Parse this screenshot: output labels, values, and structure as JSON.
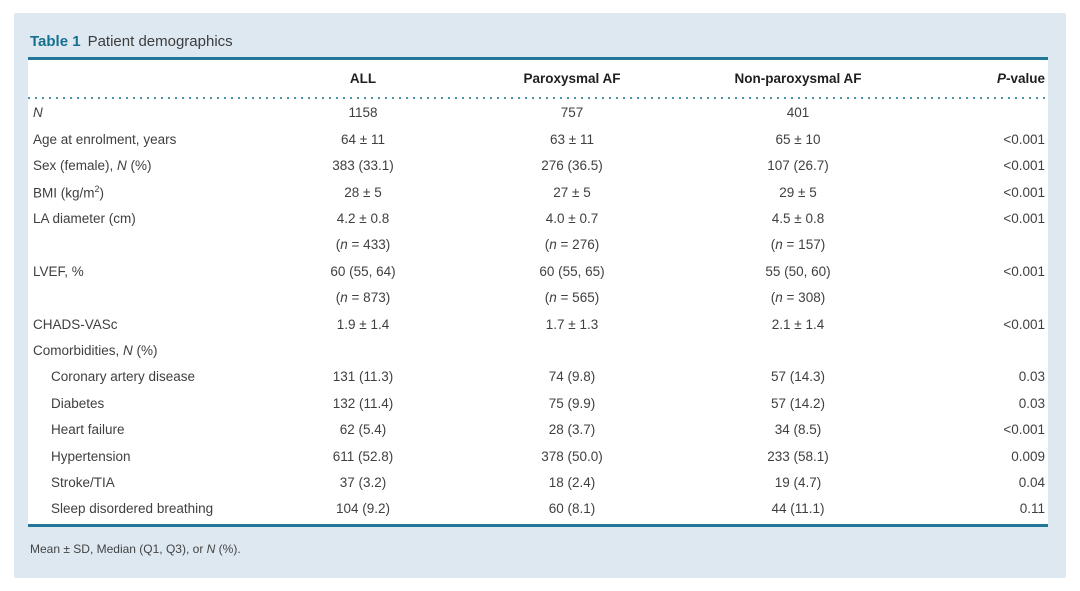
{
  "colors": {
    "accent_teal": "#16708f",
    "rule_teal": "#20779a",
    "dot_teal": "#4a92ac",
    "card_background": "#dde8f1",
    "body_text": "#3f3f3f"
  },
  "table": {
    "label": "Table 1",
    "title": "Patient demographics",
    "headers": [
      {
        "align": "left",
        "segments": []
      },
      {
        "align": "center",
        "segments": [
          [
            "ALL",
            "b"
          ]
        ]
      },
      {
        "align": "center",
        "segments": [
          [
            "Paroxysmal AF",
            "b"
          ]
        ]
      },
      {
        "align": "center",
        "segments": [
          [
            "Non-paroxysmal AF",
            "b"
          ]
        ]
      },
      {
        "align": "right",
        "segments": [
          [
            "P",
            "bi"
          ],
          [
            "-value",
            "b"
          ]
        ]
      }
    ],
    "rows": [
      {
        "indent": false,
        "label": [
          [
            "N",
            "i"
          ]
        ],
        "cells": [
          [
            [
              "1158",
              ""
            ]
          ],
          [
            [
              "757",
              ""
            ]
          ],
          [
            [
              "401",
              ""
            ]
          ],
          []
        ]
      },
      {
        "indent": false,
        "label": [
          [
            "Age at enrolment, years",
            ""
          ]
        ],
        "cells": [
          [
            [
              "64 ± 11",
              ""
            ]
          ],
          [
            [
              "63 ± 11",
              ""
            ]
          ],
          [
            [
              "65 ± 10",
              ""
            ]
          ],
          [
            [
              "<0.001",
              ""
            ]
          ]
        ]
      },
      {
        "indent": false,
        "label": [
          [
            "Sex (female), ",
            ""
          ],
          [
            "N",
            "i"
          ],
          [
            " (%)",
            ""
          ]
        ],
        "cells": [
          [
            [
              "383 (33.1)",
              ""
            ]
          ],
          [
            [
              "276 (36.5)",
              ""
            ]
          ],
          [
            [
              "107 (26.7)",
              ""
            ]
          ],
          [
            [
              "<0.001",
              ""
            ]
          ]
        ]
      },
      {
        "indent": false,
        "label": [
          [
            "BMI (kg/m",
            ""
          ],
          [
            "2",
            "sup"
          ],
          [
            ")",
            ""
          ]
        ],
        "cells": [
          [
            [
              "28 ± 5",
              ""
            ]
          ],
          [
            [
              "27 ± 5",
              ""
            ]
          ],
          [
            [
              "29 ± 5",
              ""
            ]
          ],
          [
            [
              "<0.001",
              ""
            ]
          ]
        ]
      },
      {
        "indent": false,
        "label": [
          [
            "LA diameter (cm)",
            ""
          ]
        ],
        "cells": [
          [
            [
              "4.2 ± 0.8",
              ""
            ]
          ],
          [
            [
              "4.0 ± 0.7",
              ""
            ]
          ],
          [
            [
              "4.5 ± 0.8",
              ""
            ]
          ],
          [
            [
              "<0.001",
              ""
            ]
          ]
        ]
      },
      {
        "indent": false,
        "label": [],
        "cells": [
          [
            [
              "(",
              ""
            ],
            [
              "n",
              "i"
            ],
            [
              " = 433)",
              ""
            ]
          ],
          [
            [
              "(",
              ""
            ],
            [
              "n",
              "i"
            ],
            [
              " = 276)",
              ""
            ]
          ],
          [
            [
              "(",
              ""
            ],
            [
              "n",
              "i"
            ],
            [
              " = 157)",
              ""
            ]
          ],
          []
        ]
      },
      {
        "indent": false,
        "label": [
          [
            "LVEF, %",
            ""
          ]
        ],
        "cells": [
          [
            [
              "60 (55, 64)",
              ""
            ]
          ],
          [
            [
              "60 (55, 65)",
              ""
            ]
          ],
          [
            [
              "55 (50, 60)",
              ""
            ]
          ],
          [
            [
              "<0.001",
              ""
            ]
          ]
        ]
      },
      {
        "indent": false,
        "label": [],
        "cells": [
          [
            [
              "(",
              ""
            ],
            [
              "n",
              "i"
            ],
            [
              " = 873)",
              ""
            ]
          ],
          [
            [
              "(",
              ""
            ],
            [
              "n",
              "i"
            ],
            [
              " = 565)",
              ""
            ]
          ],
          [
            [
              "(",
              ""
            ],
            [
              "n",
              "i"
            ],
            [
              " = 308)",
              ""
            ]
          ],
          []
        ]
      },
      {
        "indent": false,
        "label": [
          [
            "CHADS-VASc",
            ""
          ]
        ],
        "cells": [
          [
            [
              "1.9 ± 1.4",
              ""
            ]
          ],
          [
            [
              "1.7 ± 1.3",
              ""
            ]
          ],
          [
            [
              "2.1 ± 1.4",
              ""
            ]
          ],
          [
            [
              "<0.001",
              ""
            ]
          ]
        ]
      },
      {
        "indent": false,
        "label": [
          [
            "Comorbidities, ",
            ""
          ],
          [
            "N",
            "i"
          ],
          [
            " (%)",
            ""
          ]
        ],
        "cells": [
          [],
          [],
          [],
          []
        ]
      },
      {
        "indent": true,
        "label": [
          [
            "Coronary artery disease",
            ""
          ]
        ],
        "cells": [
          [
            [
              "131 (11.3)",
              ""
            ]
          ],
          [
            [
              "74 (9.8)",
              ""
            ]
          ],
          [
            [
              "57 (14.3)",
              ""
            ]
          ],
          [
            [
              "0.03",
              ""
            ]
          ]
        ]
      },
      {
        "indent": true,
        "label": [
          [
            "Diabetes",
            ""
          ]
        ],
        "cells": [
          [
            [
              "132 (11.4)",
              ""
            ]
          ],
          [
            [
              "75 (9.9)",
              ""
            ]
          ],
          [
            [
              "57 (14.2)",
              ""
            ]
          ],
          [
            [
              "0.03",
              ""
            ]
          ]
        ]
      },
      {
        "indent": true,
        "label": [
          [
            "Heart failure",
            ""
          ]
        ],
        "cells": [
          [
            [
              "62 (5.4)",
              ""
            ]
          ],
          [
            [
              "28 (3.7)",
              ""
            ]
          ],
          [
            [
              "34 (8.5)",
              ""
            ]
          ],
          [
            [
              "<0.001",
              ""
            ]
          ]
        ]
      },
      {
        "indent": true,
        "label": [
          [
            "Hypertension",
            ""
          ]
        ],
        "cells": [
          [
            [
              "611 (52.8)",
              ""
            ]
          ],
          [
            [
              "378 (50.0)",
              ""
            ]
          ],
          [
            [
              "233 (58.1)",
              ""
            ]
          ],
          [
            [
              "0.009",
              ""
            ]
          ]
        ]
      },
      {
        "indent": true,
        "label": [
          [
            "Stroke/TIA",
            ""
          ]
        ],
        "cells": [
          [
            [
              "37 (3.2)",
              ""
            ]
          ],
          [
            [
              "18 (2.4)",
              ""
            ]
          ],
          [
            [
              "19 (4.7)",
              ""
            ]
          ],
          [
            [
              "0.04",
              ""
            ]
          ]
        ]
      },
      {
        "indent": true,
        "label": [
          [
            "Sleep disordered breathing",
            ""
          ]
        ],
        "cells": [
          [
            [
              "104 (9.2)",
              ""
            ]
          ],
          [
            [
              "60 (8.1)",
              ""
            ]
          ],
          [
            [
              "44 (11.1)",
              ""
            ]
          ],
          [
            [
              "0.11",
              ""
            ]
          ]
        ]
      }
    ],
    "footnote_segments": [
      [
        "Mean ± SD, Median (Q1, Q3), or ",
        ""
      ],
      [
        "N",
        "i"
      ],
      [
        " (%).",
        ""
      ]
    ]
  }
}
